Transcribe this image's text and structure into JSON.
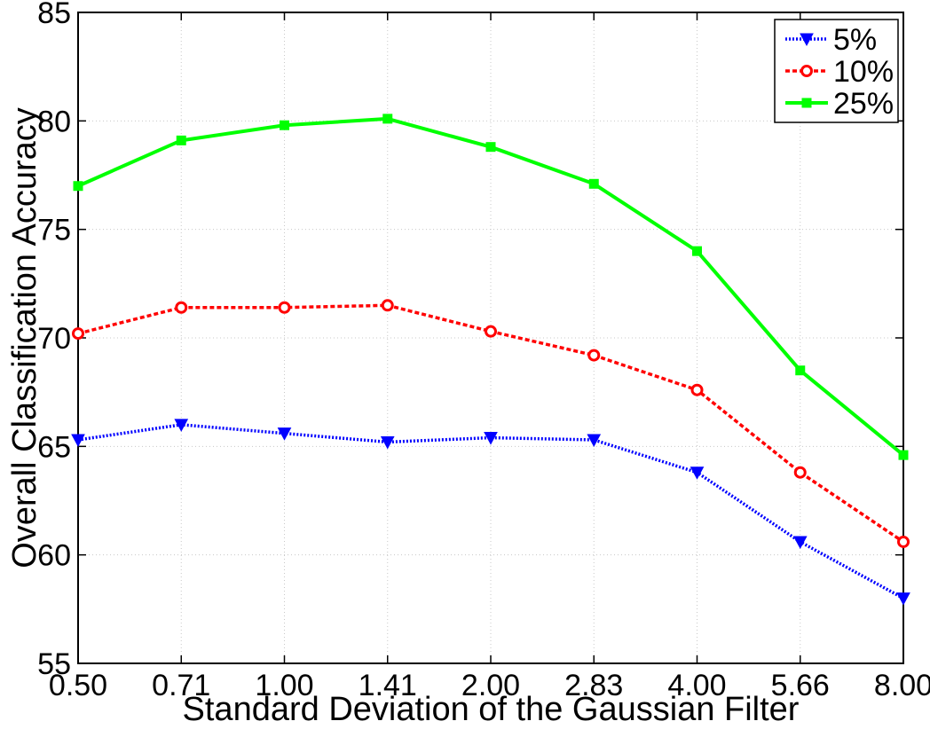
{
  "chart_data": {
    "type": "line",
    "categories": [
      "0.50",
      "0.71",
      "1.00",
      "1.41",
      "2.00",
      "2.83",
      "4.00",
      "5.66",
      "8.00"
    ],
    "xlabel": "Standard Deviation of the Gaussian Filter",
    "ylabel": "Overall Classification Accuracy",
    "ylim": [
      55,
      85
    ],
    "yticks": [
      "55",
      "60",
      "65",
      "70",
      "75",
      "80",
      "85"
    ],
    "grid": true,
    "legend_position": "top-right",
    "series": [
      {
        "name": "5%",
        "color": "#0000ff",
        "marker": "triangle-down",
        "line": "dotted",
        "values": [
          65.3,
          66.0,
          65.6,
          65.2,
          65.4,
          65.3,
          63.8,
          60.6,
          58.0
        ]
      },
      {
        "name": "10%",
        "color": "#ff0000",
        "marker": "circle",
        "line": "dashed",
        "values": [
          70.2,
          71.4,
          71.4,
          71.5,
          70.3,
          69.2,
          67.6,
          63.8,
          60.6
        ]
      },
      {
        "name": "25%",
        "color": "#00ff00",
        "marker": "square",
        "line": "solid",
        "values": [
          77.0,
          79.1,
          79.8,
          80.1,
          78.8,
          77.1,
          74.0,
          68.5,
          64.6
        ]
      }
    ]
  }
}
